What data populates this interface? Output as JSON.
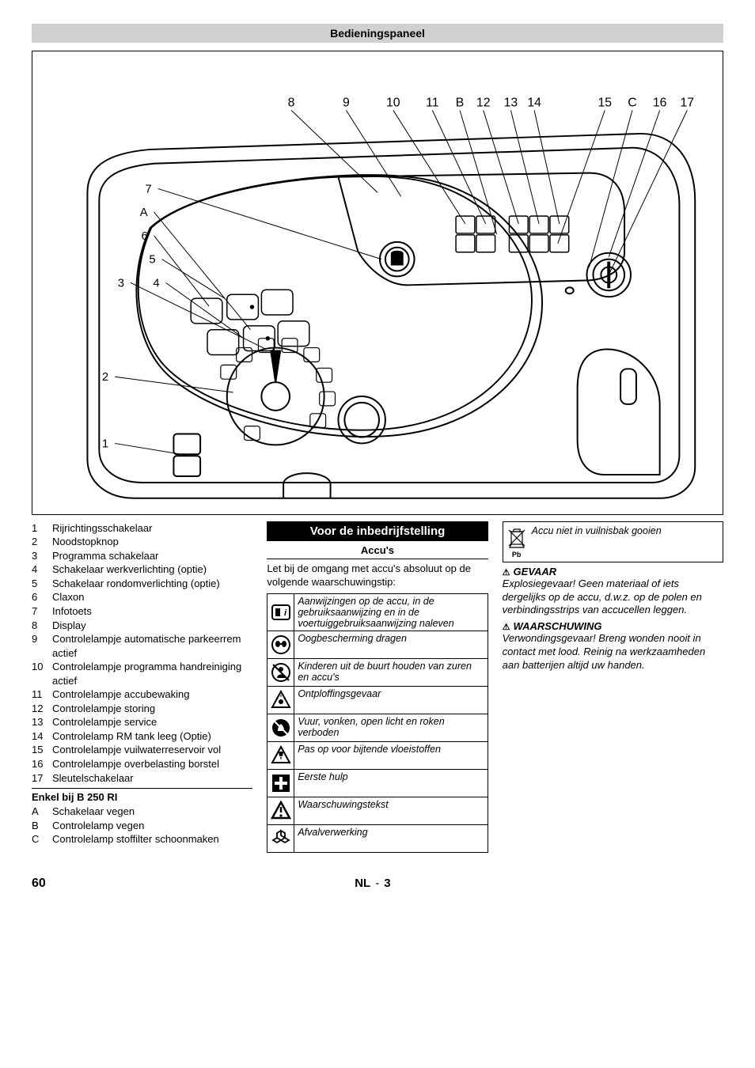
{
  "header": "Bedieningspaneel",
  "diagram": {
    "top_labels": [
      "8",
      "9",
      "10",
      "11",
      "B",
      "12",
      "13",
      "14",
      "15",
      "C",
      "16",
      "17"
    ],
    "left_labels": [
      "7",
      "A",
      "6",
      "5",
      "3",
      "4",
      "2",
      "1"
    ]
  },
  "legend": [
    {
      "n": "1",
      "t": "Rijrichtingsschakelaar"
    },
    {
      "n": "2",
      "t": "Noodstopknop"
    },
    {
      "n": "3",
      "t": "Programma schakelaar"
    },
    {
      "n": "4",
      "t": "Schakelaar werkverlichting (optie)"
    },
    {
      "n": "5",
      "t": "Schakelaar rondomverlichting (optie)"
    },
    {
      "n": "6",
      "t": "Claxon"
    },
    {
      "n": "7",
      "t": "Infotoets"
    },
    {
      "n": "8",
      "t": "Display"
    },
    {
      "n": "9",
      "t": "Controlelampje automatische parkeerrem actief"
    },
    {
      "n": "10",
      "t": "Controlelampje programma handreiniging actief"
    },
    {
      "n": "11",
      "t": "Controlelampje accubewaking"
    },
    {
      "n": "12",
      "t": "Controlelampje storing"
    },
    {
      "n": "13",
      "t": "Controlelampje service"
    },
    {
      "n": "14",
      "t": "Controlelamp RM tank leeg (Optie)"
    },
    {
      "n": "15",
      "t": "Controlelampje vuilwaterreservoir vol"
    },
    {
      "n": "16",
      "t": "Controlelampje overbelasting borstel"
    },
    {
      "n": "17",
      "t": "Sleutelschakelaar"
    }
  ],
  "sub_heading": "Enkel bij B 250 RI",
  "sub_legend": [
    {
      "n": "A",
      "t": "Schakelaar vegen"
    },
    {
      "n": "B",
      "t": "Controlelamp vegen"
    },
    {
      "n": "C",
      "t": "Controlelamp stoffilter schoonmaken"
    }
  ],
  "col2": {
    "title": "Voor de inbedrijfstelling",
    "subtitle": "Accu's",
    "intro": "Let bij de omgang met accu's absoluut op de volgende waarschuwingstip:",
    "rows": [
      "Aanwijzingen op de accu, in de gebruiksaanwijzing en in de voertuiggebruiksaanwijzing naleven",
      "Oogbescherming dragen",
      "Kinderen uit de buurt houden van zuren en accu's",
      "Ontploffingsgevaar",
      "Vuur, vonken, open licht en roken verboden",
      "Pas op voor bijtende vloeistoffen",
      "Eerste hulp",
      "Waarschuwingstekst",
      "Afvalverwerking"
    ]
  },
  "col3": {
    "pb_text": "Accu niet in vuilnisbak gooien",
    "danger": "GEVAAR",
    "danger_text": "Explosiegevaar! Geen materiaal of iets dergelijks op de accu, d.w.z. op de polen en verbindingsstrips van accucellen leggen.",
    "warn": "WAARSCHUWING",
    "warn_text": "Verwondingsgevaar! Breng wonden nooit in contact met lood. Reinig na werkzaamheden aan batterijen altijd uw handen."
  },
  "footer": {
    "page": "60",
    "lang": "NL",
    "sub": "3"
  }
}
